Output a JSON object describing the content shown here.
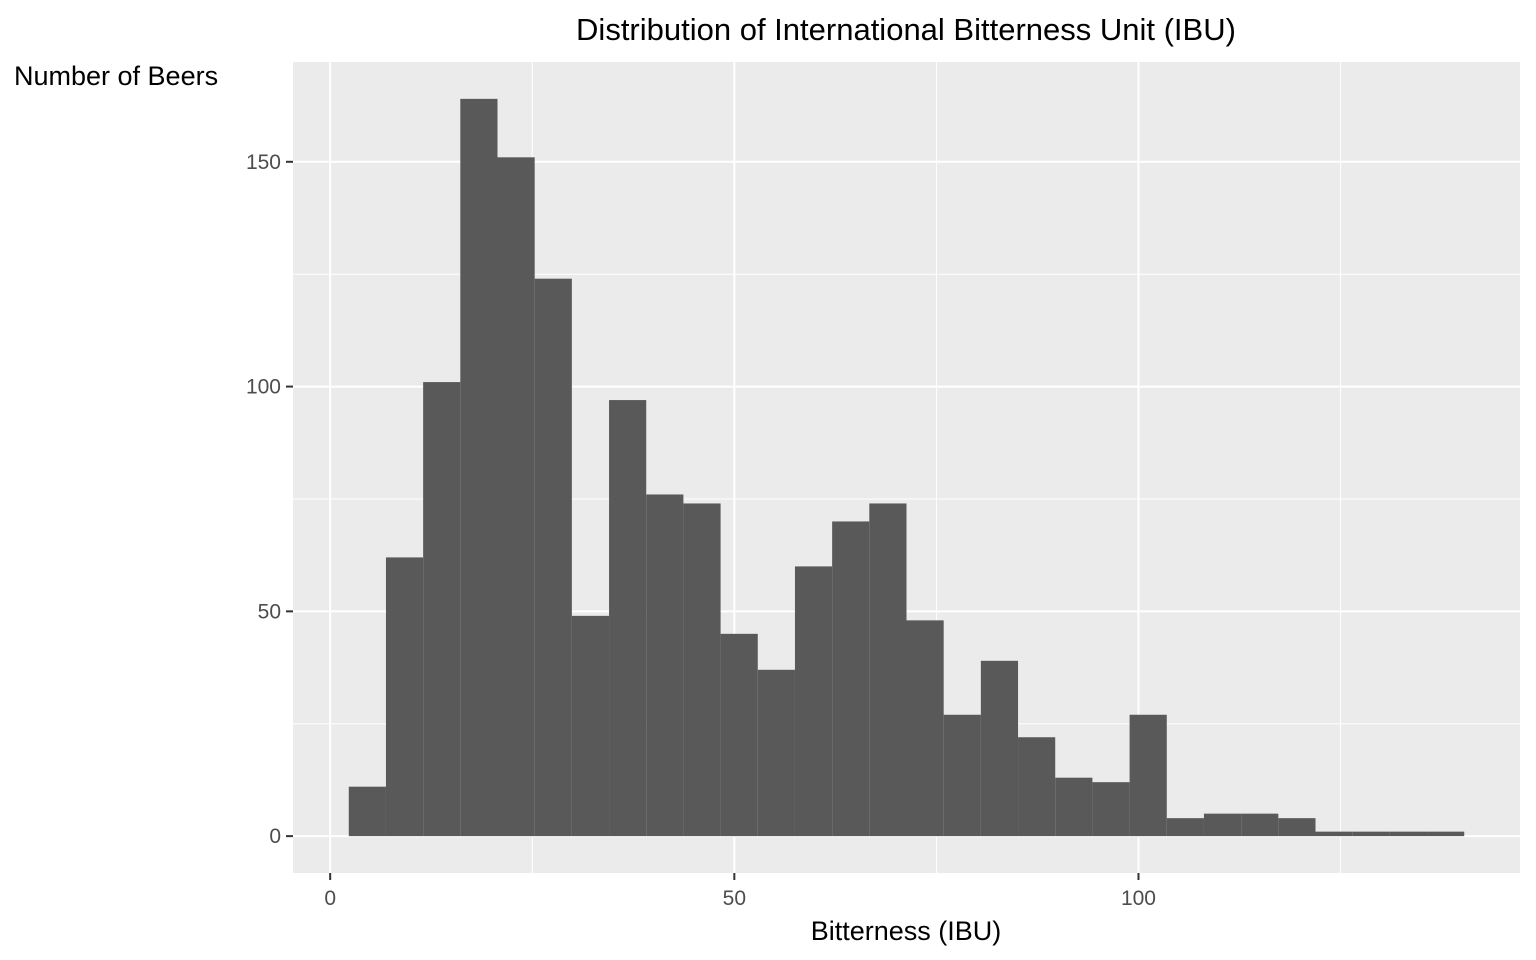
{
  "chart_data": {
    "type": "bar",
    "title": "Distribution of International Bitterness Unit (IBU)",
    "xlabel": "Bitterness (IBU)",
    "ylabel": "Number of Beers",
    "bin_width": 4.6,
    "bins": [
      {
        "x0": 2.3,
        "x1": 6.9,
        "count": 11
      },
      {
        "x0": 6.9,
        "x1": 11.5,
        "count": 62
      },
      {
        "x0": 11.5,
        "x1": 16.1,
        "count": 101
      },
      {
        "x0": 16.1,
        "x1": 20.7,
        "count": 164
      },
      {
        "x0": 20.7,
        "x1": 25.3,
        "count": 151
      },
      {
        "x0": 25.3,
        "x1": 29.9,
        "count": 124
      },
      {
        "x0": 29.9,
        "x1": 34.5,
        "count": 49
      },
      {
        "x0": 34.5,
        "x1": 39.1,
        "count": 97
      },
      {
        "x0": 39.1,
        "x1": 43.7,
        "count": 76
      },
      {
        "x0": 43.7,
        "x1": 48.3,
        "count": 74
      },
      {
        "x0": 48.3,
        "x1": 52.9,
        "count": 45
      },
      {
        "x0": 52.9,
        "x1": 57.5,
        "count": 37
      },
      {
        "x0": 57.5,
        "x1": 62.1,
        "count": 60
      },
      {
        "x0": 62.1,
        "x1": 66.7,
        "count": 70
      },
      {
        "x0": 66.7,
        "x1": 71.3,
        "count": 74
      },
      {
        "x0": 71.3,
        "x1": 75.9,
        "count": 48
      },
      {
        "x0": 75.9,
        "x1": 80.5,
        "count": 27
      },
      {
        "x0": 80.5,
        "x1": 85.1,
        "count": 39
      },
      {
        "x0": 85.1,
        "x1": 89.7,
        "count": 22
      },
      {
        "x0": 89.7,
        "x1": 94.3,
        "count": 13
      },
      {
        "x0": 94.3,
        "x1": 98.9,
        "count": 12
      },
      {
        "x0": 98.9,
        "x1": 103.5,
        "count": 27
      },
      {
        "x0": 103.5,
        "x1": 108.1,
        "count": 4
      },
      {
        "x0": 108.1,
        "x1": 112.7,
        "count": 5
      },
      {
        "x0": 112.7,
        "x1": 117.3,
        "count": 5
      },
      {
        "x0": 117.3,
        "x1": 121.9,
        "count": 4
      },
      {
        "x0": 121.9,
        "x1": 126.5,
        "count": 1
      },
      {
        "x0": 126.5,
        "x1": 131.1,
        "count": 1
      },
      {
        "x0": 131.1,
        "x1": 135.7,
        "count": 1
      },
      {
        "x0": 135.7,
        "x1": 140.3,
        "count": 1
      }
    ],
    "x_ticks": [
      0,
      50,
      100
    ],
    "y_ticks": [
      0,
      50,
      100,
      150
    ],
    "xlim": [
      -4.6,
      147.2
    ],
    "ylim": [
      -8.2,
      172.2
    ],
    "grid": true,
    "colors": {
      "bar_fill": "#595959",
      "panel_background": "#ebebeb",
      "grid_line": "#ffffff",
      "tick_text": "#4d4d4d",
      "axis_ticks": "#333333"
    }
  }
}
